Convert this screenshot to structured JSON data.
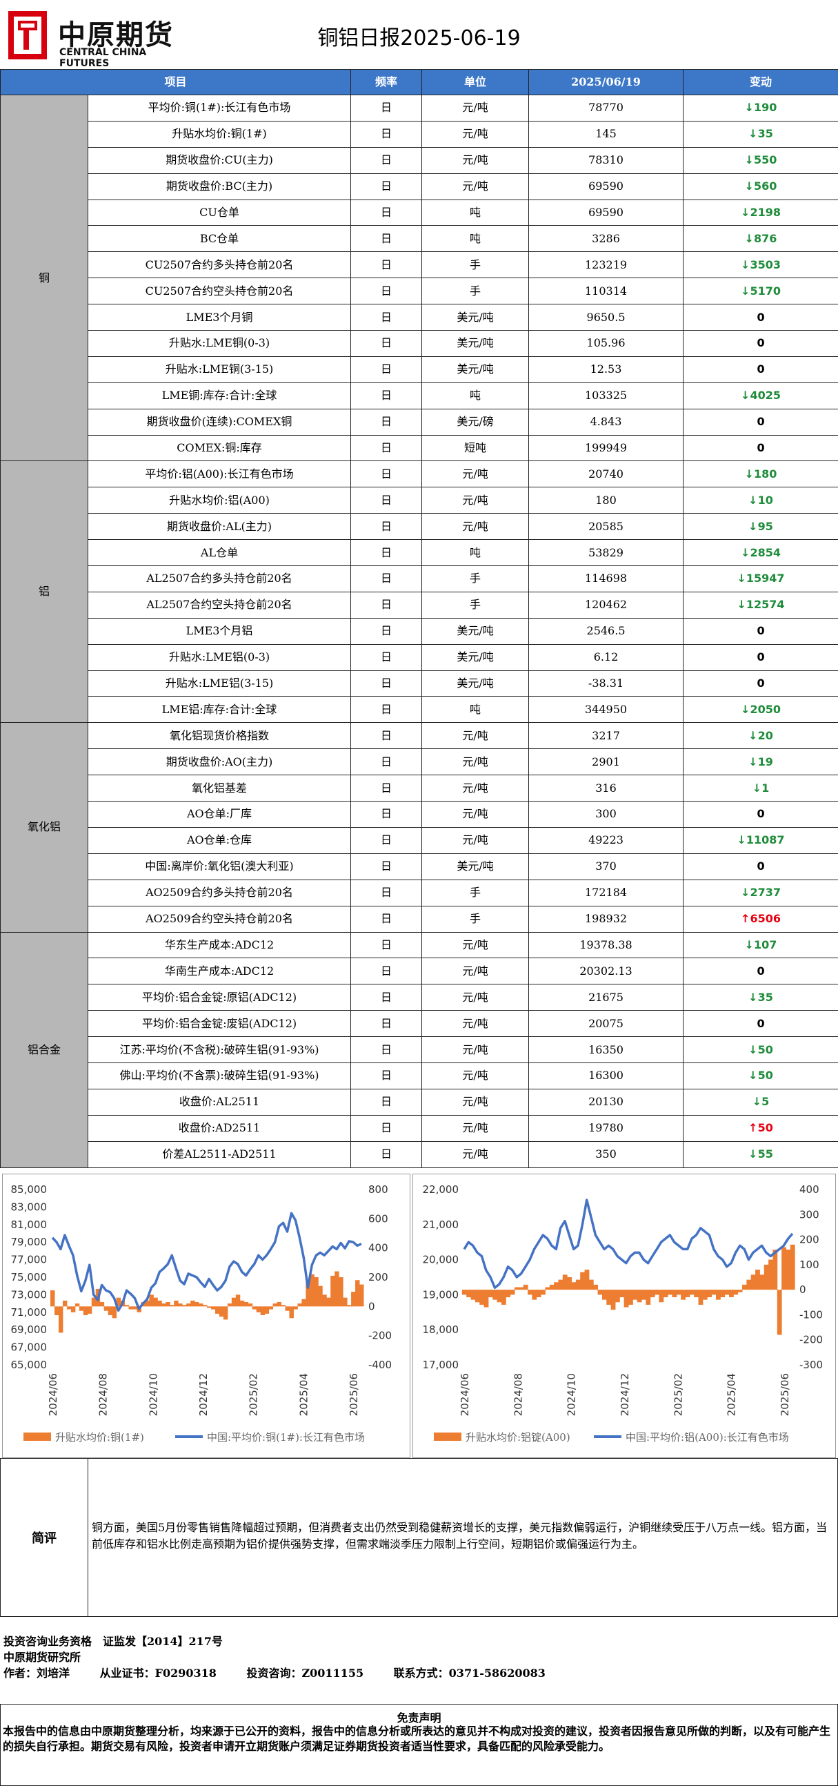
{
  "header": {
    "logo_cn": "中原期货",
    "logo_en": "CENTRAL CHINA FUTURES",
    "title": "铜铝日报2025-06-19",
    "brand_color": "#d7000f"
  },
  "table": {
    "headers": [
      "项目",
      "频率",
      "单位",
      "2025/06/19",
      "变动"
    ],
    "header_color": "#3d78c8",
    "groups": [
      {
        "category": "铜",
        "rows": [
          {
            "item": "平均价:铜(1#):长江有色市场",
            "freq": "日",
            "unit": "元/吨",
            "value": "78770",
            "change": "190",
            "dir": "down"
          },
          {
            "item": "升贴水均价:铜(1#)",
            "freq": "日",
            "unit": "元/吨",
            "value": "145",
            "change": "35",
            "dir": "down"
          },
          {
            "item": "期货收盘价:CU(主力)",
            "freq": "日",
            "unit": "元/吨",
            "value": "78310",
            "change": "550",
            "dir": "down"
          },
          {
            "item": "期货收盘价:BC(主力)",
            "freq": "日",
            "unit": "元/吨",
            "value": "69590",
            "change": "560",
            "dir": "down"
          },
          {
            "item": "CU仓单",
            "freq": "日",
            "unit": "吨",
            "value": "69590",
            "change": "2198",
            "dir": "down"
          },
          {
            "item": "BC仓单",
            "freq": "日",
            "unit": "吨",
            "value": "3286",
            "change": "876",
            "dir": "down"
          },
          {
            "item": "CU2507合约多头持仓前20名",
            "freq": "日",
            "unit": "手",
            "value": "123219",
            "change": "3503",
            "dir": "down"
          },
          {
            "item": "CU2507合约空头持仓前20名",
            "freq": "日",
            "unit": "手",
            "value": "110314",
            "change": "5170",
            "dir": "down"
          },
          {
            "item": "LME3个月铜",
            "freq": "日",
            "unit": "美元/吨",
            "value": "9650.5",
            "change": "0",
            "dir": "zero"
          },
          {
            "item": "升贴水:LME铜(0-3)",
            "freq": "日",
            "unit": "美元/吨",
            "value": "105.96",
            "change": "0",
            "dir": "zero"
          },
          {
            "item": "升贴水:LME铜(3-15)",
            "freq": "日",
            "unit": "美元/吨",
            "value": "12.53",
            "change": "0",
            "dir": "zero"
          },
          {
            "item": "LME铜:库存:合计:全球",
            "freq": "日",
            "unit": "吨",
            "value": "103325",
            "change": "4025",
            "dir": "down"
          },
          {
            "item": "期货收盘价(连续):COMEX铜",
            "freq": "日",
            "unit": "美元/磅",
            "value": "4.843",
            "change": "0",
            "dir": "zero"
          },
          {
            "item": "COMEX:铜:库存",
            "freq": "日",
            "unit": "短吨",
            "value": "199949",
            "change": "0",
            "dir": "zero"
          }
        ]
      },
      {
        "category": "铝",
        "rows": [
          {
            "item": "平均价:铝(A00):长江有色市场",
            "freq": "日",
            "unit": "元/吨",
            "value": "20740",
            "change": "180",
            "dir": "down"
          },
          {
            "item": "升贴水均价:铝(A00)",
            "freq": "日",
            "unit": "元/吨",
            "value": "180",
            "change": "10",
            "dir": "down"
          },
          {
            "item": "期货收盘价:AL(主力)",
            "freq": "日",
            "unit": "元/吨",
            "value": "20585",
            "change": "95",
            "dir": "down"
          },
          {
            "item": "AL仓单",
            "freq": "日",
            "unit": "吨",
            "value": "53829",
            "change": "2854",
            "dir": "down"
          },
          {
            "item": "AL2507合约多头持仓前20名",
            "freq": "日",
            "unit": "手",
            "value": "114698",
            "change": "15947",
            "dir": "down"
          },
          {
            "item": "AL2507合约空头持仓前20名",
            "freq": "日",
            "unit": "手",
            "value": "120462",
            "change": "12574",
            "dir": "down"
          },
          {
            "item": "LME3个月铝",
            "freq": "日",
            "unit": "美元/吨",
            "value": "2546.5",
            "change": "0",
            "dir": "zero"
          },
          {
            "item": "升贴水:LME铝(0-3)",
            "freq": "日",
            "unit": "美元/吨",
            "value": "6.12",
            "change": "0",
            "dir": "zero"
          },
          {
            "item": "升贴水:LME铝(3-15)",
            "freq": "日",
            "unit": "美元/吨",
            "value": "-38.31",
            "change": "0",
            "dir": "zero"
          },
          {
            "item": "LME铝:库存:合计:全球",
            "freq": "日",
            "unit": "吨",
            "value": "344950",
            "change": "2050",
            "dir": "down"
          }
        ]
      },
      {
        "category": "氧化铝",
        "rows": [
          {
            "item": "氧化铝现货价格指数",
            "freq": "日",
            "unit": "元/吨",
            "value": "3217",
            "change": "20",
            "dir": "down"
          },
          {
            "item": "期货收盘价:AO(主力)",
            "freq": "日",
            "unit": "元/吨",
            "value": "2901",
            "change": "19",
            "dir": "down"
          },
          {
            "item": "氧化铝基差",
            "freq": "日",
            "unit": "元/吨",
            "value": "316",
            "change": "1",
            "dir": "down"
          },
          {
            "item": "AO仓单:厂库",
            "freq": "日",
            "unit": "元/吨",
            "value": "300",
            "change": "0",
            "dir": "zero"
          },
          {
            "item": "AO仓单:仓库",
            "freq": "日",
            "unit": "元/吨",
            "value": "49223",
            "change": "11087",
            "dir": "down"
          },
          {
            "item": "中国:离岸价:氧化铝(澳大利亚)",
            "freq": "日",
            "unit": "美元/吨",
            "value": "370",
            "change": "0",
            "dir": "zero"
          },
          {
            "item": "AO2509合约多头持仓前20名",
            "freq": "日",
            "unit": "手",
            "value": "172184",
            "change": "2737",
            "dir": "down"
          },
          {
            "item": "AO2509合约空头持仓前20名",
            "freq": "日",
            "unit": "手",
            "value": "198932",
            "change": "6506",
            "dir": "up"
          }
        ]
      },
      {
        "category": "铝合金",
        "rows": [
          {
            "item": "华东生产成本:ADC12",
            "freq": "日",
            "unit": "元/吨",
            "value": "19378.38",
            "change": "107",
            "dir": "down"
          },
          {
            "item": "华南生产成本:ADC12",
            "freq": "日",
            "unit": "元/吨",
            "value": "20302.13",
            "change": "0",
            "dir": "zero"
          },
          {
            "item": "平均价:铝合金锭:原铝(ADC12)",
            "freq": "日",
            "unit": "元/吨",
            "value": "21675",
            "change": "35",
            "dir": "down"
          },
          {
            "item": "平均价:铝合金锭:废铝(ADC12)",
            "freq": "日",
            "unit": "元/吨",
            "value": "20075",
            "change": "0",
            "dir": "zero"
          },
          {
            "item": "江苏:平均价(不含税):破碎生铝(91-93%)",
            "freq": "日",
            "unit": "元/吨",
            "value": "16350",
            "change": "50",
            "dir": "down"
          },
          {
            "item": "佛山:平均价(不含票):破碎生铝(91-93%)",
            "freq": "日",
            "unit": "元/吨",
            "value": "16300",
            "change": "50",
            "dir": "down"
          },
          {
            "item": "收盘价:AL2511",
            "freq": "日",
            "unit": "元/吨",
            "value": "20130",
            "change": "5",
            "dir": "down"
          },
          {
            "item": "收盘价:AD2511",
            "freq": "日",
            "unit": "元/吨",
            "value": "19780",
            "change": "50",
            "dir": "up"
          },
          {
            "item": "价差AL2511-AD2511",
            "freq": "日",
            "unit": "元/吨",
            "value": "350",
            "change": "55",
            "dir": "down"
          }
        ]
      }
    ],
    "arrow_down": "↓",
    "arrow_up": "↑",
    "down_color": "#1e8c3a",
    "up_color": "#e60012"
  },
  "chart_data": [
    {
      "type": "line",
      "x_ticks": [
        "2024/06",
        "2024/08",
        "2024/10",
        "2024/12",
        "2025/02",
        "2025/04",
        "2025/06"
      ],
      "left_axis": {
        "ticks": [
          "65,000",
          "67,000",
          "69,000",
          "71,000",
          "73,000",
          "75,000",
          "77,000",
          "79,000",
          "81,000",
          "83,000",
          "85,000"
        ],
        "ylim": [
          65000,
          85000
        ]
      },
      "right_axis": {
        "ticks": [
          "-400",
          "-200",
          "0",
          "200",
          "400",
          "600",
          "800"
        ],
        "ylim": [
          -400,
          800
        ]
      },
      "series": [
        {
          "name": "升贴水均价:铜(1#)",
          "kind": "area",
          "axis": "right",
          "color": "#ed7d31",
          "values": [
            110,
            -60,
            -180,
            40,
            -20,
            -40,
            20,
            -30,
            -60,
            -50,
            60,
            120,
            30,
            -30,
            -60,
            -80,
            60,
            40,
            10,
            -20,
            -20,
            -40,
            30,
            40,
            80,
            60,
            40,
            20,
            30,
            10,
            40,
            20,
            10,
            20,
            40,
            30,
            20,
            10,
            -10,
            -20,
            -50,
            -70,
            -90,
            20,
            60,
            80,
            40,
            30,
            20,
            -20,
            -40,
            -60,
            -50,
            -20,
            20,
            30,
            10,
            -30,
            -80,
            -20,
            20,
            50,
            180,
            220,
            200,
            140,
            80,
            60,
            210,
            240,
            200,
            60,
            10,
            100,
            180,
            150
          ]
        },
        {
          "name": "中国:平均价:铜(1#):长江有色市场",
          "kind": "line",
          "axis": "left",
          "color": "#4472c4",
          "values": [
            79500,
            79000,
            78200,
            79800,
            78600,
            77500,
            75200,
            73400,
            74600,
            76400,
            73000,
            72400,
            74100,
            73500,
            73300,
            72600,
            71200,
            72000,
            73500,
            73100,
            72600,
            71400,
            72000,
            72500,
            73800,
            74300,
            75600,
            76000,
            76500,
            77500,
            76000,
            74600,
            74200,
            75400,
            75200,
            75000,
            74400,
            73900,
            74800,
            74100,
            73500,
            73900,
            74600,
            76200,
            76800,
            76500,
            75600,
            75200,
            75900,
            76500,
            77500,
            77000,
            77500,
            78200,
            79000,
            80800,
            81200,
            80200,
            82300,
            81500,
            79500,
            77200,
            73800,
            76400,
            77500,
            77800,
            77500,
            78000,
            78500,
            78200,
            78900,
            78300,
            79100,
            79000,
            78600,
            78800
          ]
        }
      ]
    },
    {
      "type": "line",
      "x_ticks": [
        "2024/06",
        "2024/08",
        "2024/10",
        "2024/12",
        "2025/02",
        "2025/04",
        "2025/06"
      ],
      "left_axis": {
        "ticks": [
          "17,000",
          "18,000",
          "19,000",
          "20,000",
          "21,000",
          "22,000"
        ],
        "ylim": [
          17000,
          22000
        ]
      },
      "right_axis": {
        "ticks": [
          "-300",
          "-200",
          "-100",
          "0",
          "100",
          "200",
          "300",
          "400"
        ],
        "ylim": [
          -300,
          400
        ]
      },
      "series": [
        {
          "name": "升贴水均价:铝锭(A00)",
          "kind": "area",
          "axis": "right",
          "color": "#ed7d31",
          "values": [
            -20,
            -30,
            -40,
            -50,
            -60,
            -70,
            -30,
            -40,
            -50,
            -60,
            -30,
            -20,
            10,
            10,
            20,
            -20,
            -40,
            -30,
            -20,
            10,
            20,
            30,
            40,
            60,
            50,
            30,
            40,
            70,
            80,
            40,
            20,
            -20,
            -40,
            -60,
            -80,
            -50,
            -30,
            -70,
            -60,
            -40,
            -50,
            -40,
            -60,
            -30,
            -20,
            -50,
            -30,
            -20,
            -30,
            -20,
            -40,
            -30,
            -20,
            -30,
            -60,
            -40,
            -30,
            -20,
            -40,
            -30,
            -20,
            -30,
            -20,
            -10,
            20,
            40,
            60,
            80,
            60,
            100,
            120,
            160,
            -180,
            170,
            160,
            180
          ]
        },
        {
          "name": "中国:平均价:铝(A00):长江有色市场",
          "kind": "line",
          "axis": "left",
          "color": "#4472c4",
          "values": [
            20300,
            20500,
            20400,
            20200,
            20100,
            19700,
            19500,
            19200,
            19300,
            19500,
            19800,
            19700,
            19500,
            19600,
            19800,
            20000,
            20300,
            20500,
            20700,
            20600,
            20400,
            20300,
            20900,
            21100,
            20700,
            20300,
            20400,
            21000,
            21700,
            21200,
            20700,
            20500,
            20300,
            20400,
            20300,
            20100,
            20000,
            19900,
            20100,
            20200,
            20200,
            20000,
            19900,
            20100,
            20300,
            20500,
            20600,
            20700,
            20500,
            20400,
            20300,
            20300,
            20600,
            20700,
            20900,
            20800,
            20700,
            20300,
            20100,
            20000,
            19800,
            19900,
            20200,
            20400,
            20300,
            20000,
            20200,
            20300,
            20400,
            20200,
            20100,
            20200,
            20300,
            20400,
            20600,
            20740
          ]
        }
      ]
    }
  ],
  "comment": {
    "label": "简评",
    "text": "铜方面，美国5月份零售销售降幅超过预期，但消费者支出仍然受到稳健薪资增长的支撑，美元指数偏弱运行，沪铜继续受压于八万点一线。铝方面，当前低库存和铝水比例走高预期为铝价提供强势支撑，但需求端淡季压力限制上行空间，短期铝价或偏强运行为主。"
  },
  "info": {
    "line1": "投资咨询业务资格　证监发【2014】217号",
    "line2": "中原期货研究所",
    "author": "作者：刘培洋",
    "cert": "从业证书：F0290318",
    "consult": "投资咨询：Z0011155",
    "contact": "联系方式：0371-58620083"
  },
  "disclaimer": {
    "title": "免责声明",
    "text": "本报告中的信息由中原期货整理分析，均来源于已公开的资料，报告中的信息分析或所表达的意见并不构成对投资的建议，投资者因报告意见所做的判断，以及有可能产生的损失自行承担。期货交易有风险，投资者申请开立期货账户须满足证券期货投资者适当性要求，具备匹配的风险承受能力。"
  }
}
